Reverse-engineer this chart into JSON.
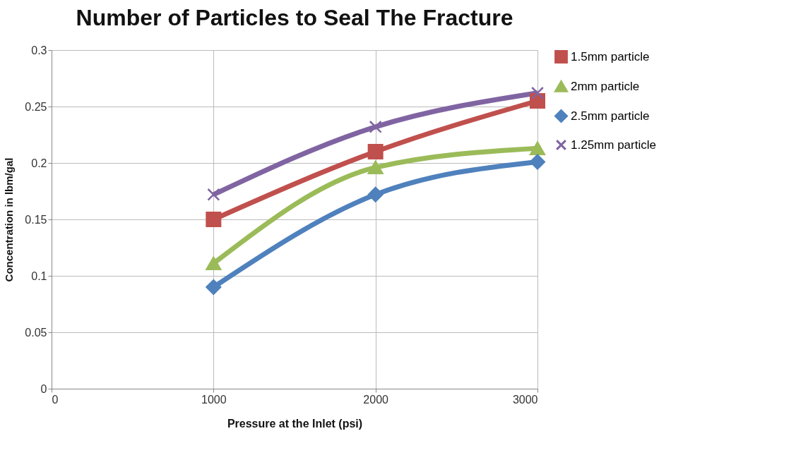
{
  "chart_data": {
    "type": "line",
    "title": "Number of Particles to Seal The Fracture",
    "xlabel": "Pressure at the Inlet (psi)",
    "ylabel": "Concentration in lbm/gal",
    "x": [
      1000,
      2000,
      3000
    ],
    "series": [
      {
        "name": "1.5mm particle",
        "color": "#c0504d",
        "marker": "square",
        "values": [
          0.15,
          0.21,
          0.255
        ]
      },
      {
        "name": "2mm particle",
        "color": "#9bbb59",
        "marker": "triangle",
        "values": [
          0.111,
          0.196,
          0.213
        ]
      },
      {
        "name": "2.5mm particle",
        "color": "#4f81bd",
        "marker": "diamond",
        "values": [
          0.09,
          0.172,
          0.201
        ]
      },
      {
        "name": "1.25mm particle",
        "color": "#8064a2",
        "marker": "cross",
        "values": [
          0.172,
          0.232,
          0.262
        ]
      }
    ],
    "xlim": [
      0,
      3000
    ],
    "xticks": [
      0,
      1000,
      2000,
      3000
    ],
    "ylim": [
      0,
      0.3
    ],
    "yticks": [
      0,
      0.05,
      0.1,
      0.15,
      0.2,
      0.25,
      0.3
    ],
    "grid": true,
    "legend": "right",
    "line_style": "solid"
  }
}
